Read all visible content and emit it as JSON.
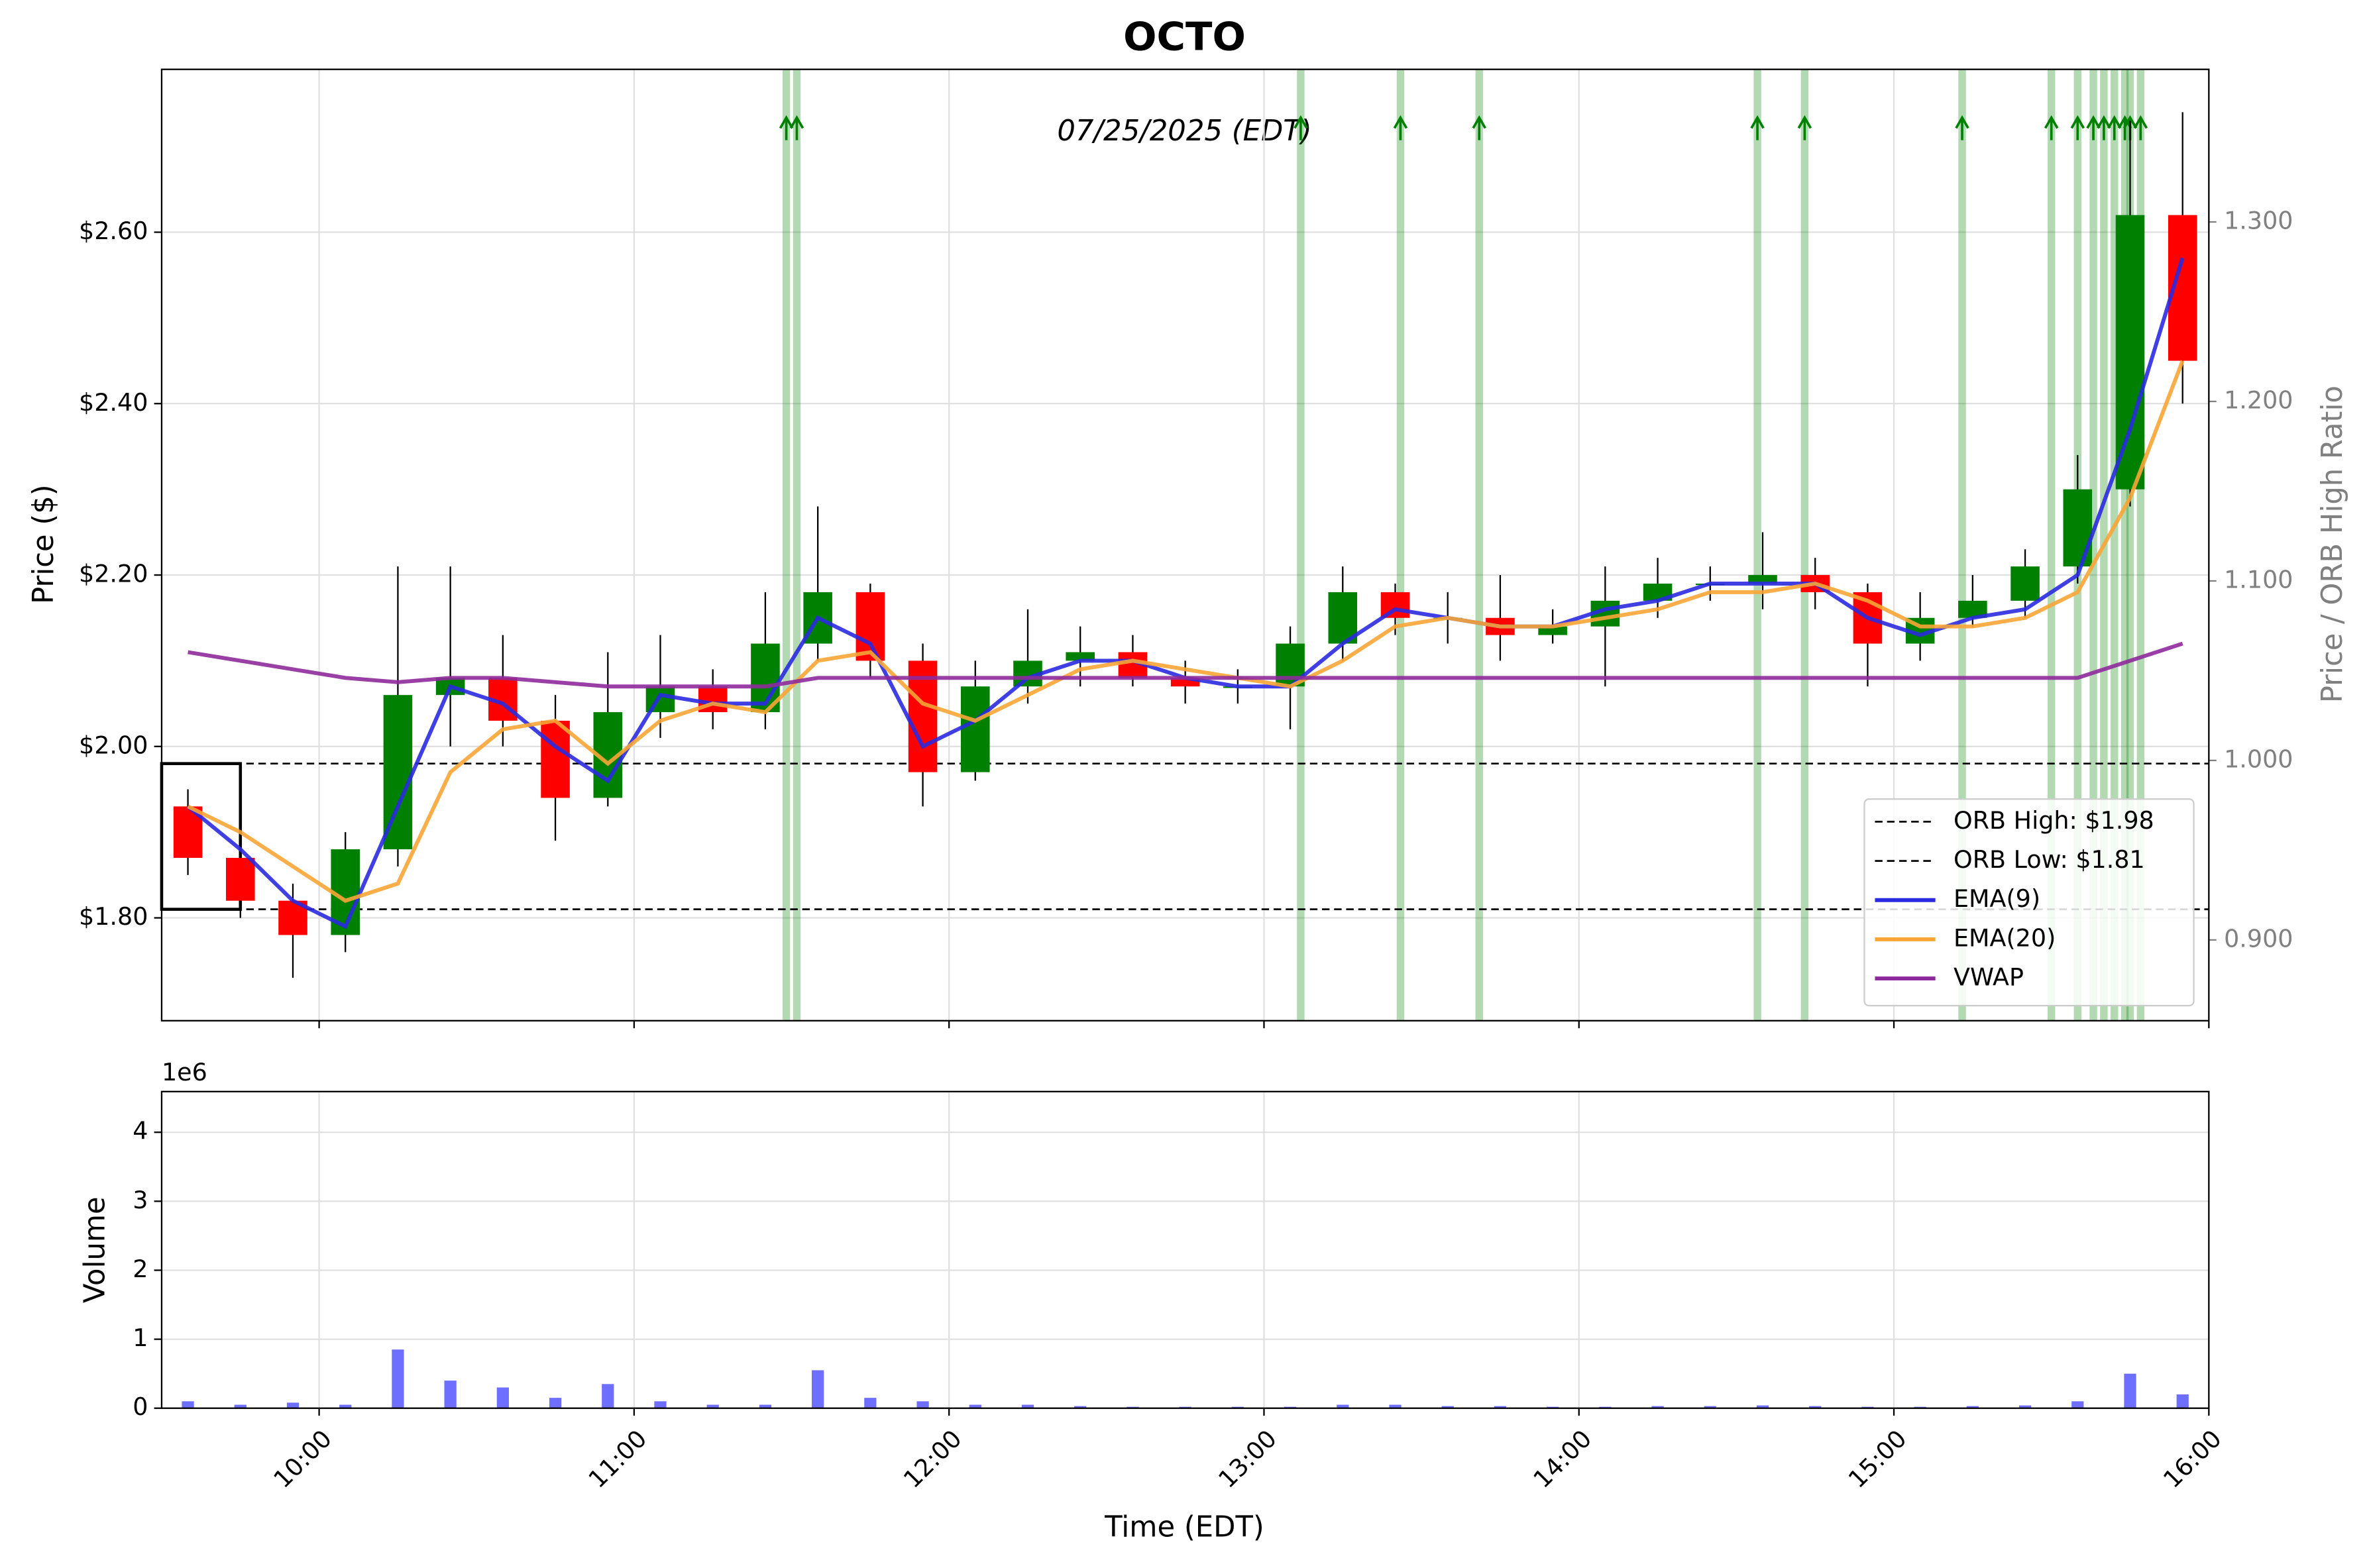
{
  "chart_data": [
    {
      "type": "candlestick",
      "title": "OCTO",
      "subtitle": "07/25/2025 (EDT)",
      "x": [
        "09:30",
        "09:40",
        "09:50",
        "10:00",
        "10:10",
        "10:20",
        "10:30",
        "10:40",
        "10:50",
        "11:00",
        "11:10",
        "11:20",
        "11:30",
        "11:40",
        "11:50",
        "12:00",
        "12:10",
        "12:20",
        "12:30",
        "12:40",
        "12:50",
        "13:00",
        "13:10",
        "13:20",
        "13:30",
        "13:40",
        "13:50",
        "14:00",
        "14:10",
        "14:20",
        "14:30",
        "14:40",
        "14:50",
        "15:00",
        "15:10",
        "15:20",
        "15:30",
        "15:40",
        "15:50"
      ],
      "open": [
        1.93,
        1.87,
        1.82,
        1.78,
        1.88,
        2.06,
        2.08,
        2.03,
        1.94,
        2.04,
        2.07,
        2.04,
        2.12,
        2.18,
        2.1,
        1.97,
        2.07,
        2.1,
        2.11,
        2.08,
        2.07,
        2.07,
        2.12,
        2.18,
        2.15,
        2.15,
        2.13,
        2.14,
        2.17,
        2.19,
        2.19,
        2.2,
        2.18,
        2.12,
        2.15,
        2.17,
        2.21,
        2.3,
        2.62
      ],
      "high": [
        1.95,
        1.88,
        1.84,
        1.9,
        2.21,
        2.21,
        2.13,
        2.06,
        2.11,
        2.13,
        2.09,
        2.18,
        2.28,
        2.19,
        2.12,
        2.1,
        2.16,
        2.14,
        2.13,
        2.1,
        2.09,
        2.14,
        2.21,
        2.19,
        2.18,
        2.2,
        2.16,
        2.21,
        2.22,
        2.21,
        2.25,
        2.22,
        2.19,
        2.18,
        2.2,
        2.23,
        2.34,
        2.73,
        2.74
      ],
      "low": [
        1.85,
        1.8,
        1.73,
        1.76,
        1.86,
        2.0,
        2.0,
        1.89,
        1.93,
        2.01,
        2.02,
        2.02,
        2.1,
        2.08,
        1.93,
        1.96,
        2.05,
        2.07,
        2.07,
        2.05,
        2.05,
        2.02,
        2.1,
        2.13,
        2.12,
        2.1,
        2.12,
        2.07,
        2.15,
        2.17,
        2.16,
        2.16,
        2.07,
        2.1,
        2.14,
        2.15,
        2.19,
        2.28,
        2.4
      ],
      "close": [
        1.87,
        1.82,
        1.78,
        1.88,
        2.06,
        2.08,
        2.03,
        1.94,
        2.04,
        2.07,
        2.04,
        2.12,
        2.18,
        2.1,
        1.97,
        2.07,
        2.1,
        2.11,
        2.08,
        2.07,
        2.07,
        2.12,
        2.18,
        2.15,
        2.15,
        2.13,
        2.14,
        2.17,
        2.19,
        2.19,
        2.2,
        2.18,
        2.12,
        2.15,
        2.17,
        2.21,
        2.3,
        2.62,
        2.45
      ],
      "up_color": "#008000",
      "down_color": "#ff0000",
      "series": [
        {
          "name": "EMA(9)",
          "color": "#2a2ae0",
          "values": [
            1.93,
            1.88,
            1.82,
            1.79,
            1.93,
            2.07,
            2.05,
            2.0,
            1.96,
            2.06,
            2.05,
            2.05,
            2.15,
            2.12,
            2.0,
            2.03,
            2.08,
            2.1,
            2.1,
            2.08,
            2.07,
            2.07,
            2.12,
            2.16,
            2.15,
            2.14,
            2.14,
            2.16,
            2.17,
            2.19,
            2.19,
            2.19,
            2.15,
            2.13,
            2.15,
            2.16,
            2.2,
            2.37,
            2.57
          ]
        },
        {
          "name": "EMA(20)",
          "color": "#f8a535",
          "values": [
            1.93,
            1.9,
            1.86,
            1.82,
            1.84,
            1.97,
            2.02,
            2.03,
            1.98,
            2.03,
            2.05,
            2.04,
            2.1,
            2.11,
            2.05,
            2.03,
            2.06,
            2.09,
            2.1,
            2.09,
            2.08,
            2.07,
            2.1,
            2.14,
            2.15,
            2.14,
            2.14,
            2.15,
            2.16,
            2.18,
            2.18,
            2.19,
            2.17,
            2.14,
            2.14,
            2.15,
            2.18,
            2.29,
            2.45
          ]
        },
        {
          "name": "VWAP",
          "color": "#8e2a9b",
          "values": [
            2.11,
            2.1,
            2.09,
            2.08,
            2.075,
            2.08,
            2.08,
            2.075,
            2.07,
            2.07,
            2.07,
            2.07,
            2.08,
            2.08,
            2.08,
            2.08,
            2.08,
            2.08,
            2.08,
            2.08,
            2.08,
            2.08,
            2.08,
            2.08,
            2.08,
            2.08,
            2.08,
            2.08,
            2.08,
            2.08,
            2.08,
            2.08,
            2.08,
            2.08,
            2.08,
            2.08,
            2.08,
            2.1,
            2.12
          ]
        }
      ],
      "hlines": [
        {
          "name": "ORB High: $1.98",
          "value": 1.98
        },
        {
          "name": "ORB Low: $1.81",
          "value": 1.81
        }
      ],
      "orb_box": {
        "x": [
          "09:30",
          "09:45"
        ]
      },
      "signals": {
        "color": "#008000",
        "x": [
          "11:29",
          "11:31",
          "13:07",
          "13:26",
          "13:41",
          "14:34",
          "14:43",
          "15:13",
          "15:30",
          "15:35",
          "15:38",
          "15:40",
          "15:42",
          "15:44",
          "15:45",
          "15:47"
        ]
      },
      "ylabel": "Price ($)",
      "y2label": "Price / ORB High Ratio",
      "xlim": [
        "09:30",
        "16:00"
      ],
      "ylim": [
        1.68,
        2.79
      ],
      "yticks": [
        {
          "value": 1.8,
          "label": "$1.80"
        },
        {
          "value": 2.0,
          "label": "$2.00"
        },
        {
          "value": 2.2,
          "label": "$2.20"
        },
        {
          "value": 2.4,
          "label": "$2.40"
        },
        {
          "value": 2.6,
          "label": "$2.60"
        }
      ],
      "y2lim": [
        0.855,
        1.385
      ],
      "y2ticks": [
        {
          "value": 0.9,
          "label": "0.900"
        },
        {
          "value": 1.0,
          "label": "1.000"
        },
        {
          "value": 1.1,
          "label": "1.100"
        },
        {
          "value": 1.2,
          "label": "1.200"
        },
        {
          "value": 1.3,
          "label": "1.300"
        }
      ],
      "grid": true,
      "legend": "lower right"
    },
    {
      "type": "bar",
      "ylabel": "Volume",
      "xlabel": "Time (EDT)",
      "offset_label": "1e6",
      "color": "#5555ff",
      "values": [
        0.1,
        0.05,
        0.08,
        0.05,
        0.85,
        0.4,
        0.3,
        0.15,
        0.35,
        0.1,
        0.05,
        0.05,
        0.55,
        0.15,
        0.1,
        0.05,
        0.05,
        0.03,
        0.02,
        0.02,
        0.02,
        0.02,
        0.05,
        0.05,
        0.03,
        0.03,
        0.02,
        0.02,
        0.03,
        0.03,
        0.04,
        0.03,
        0.02,
        0.02,
        0.03,
        0.04,
        0.1,
        0.5,
        0.2
      ],
      "ylim": [
        0,
        4.59
      ],
      "yticks": [
        0,
        1,
        2,
        3,
        4
      ],
      "xticks": [
        "10:00",
        "11:00",
        "12:00",
        "13:00",
        "14:00",
        "15:00",
        "16:00"
      ],
      "grid": true
    }
  ]
}
